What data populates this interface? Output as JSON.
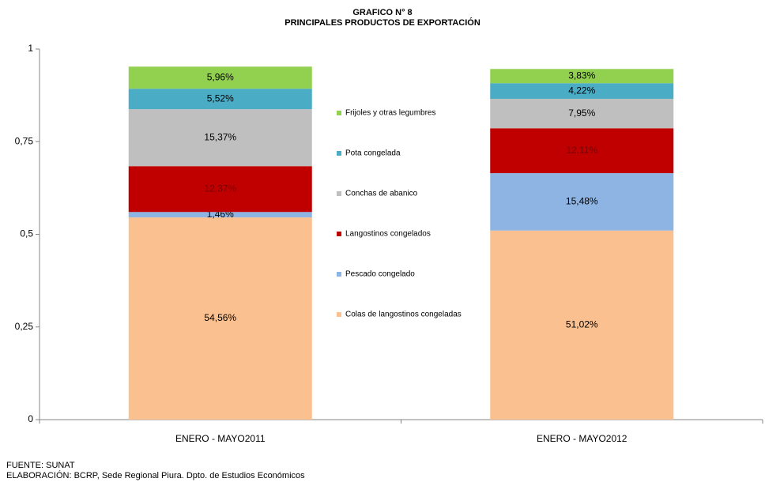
{
  "chart_data": {
    "type": "stacked_bar",
    "title": "GRAFICO N° 8",
    "subtitle": "PRINCIPALES PRODUCTOS  DE EXPORTACIÓN",
    "categories": [
      "ENERO - MAYO2011",
      "ENERO - MAYO2012"
    ],
    "series": [
      {
        "name": "Colas de langostinos congeladas",
        "color": "#fac090",
        "values": [
          0.5456,
          0.5102
        ],
        "value_labels": [
          "54,56%",
          "51,02%"
        ]
      },
      {
        "name": "Pescado congelado",
        "color": "#8db4e2",
        "values": [
          0.0146,
          0.1548
        ],
        "value_labels": [
          "1,46%",
          "15,48%"
        ]
      },
      {
        "name": "Langostinos congelados",
        "color": "#c00000",
        "values": [
          0.1237,
          0.1211
        ],
        "value_labels": [
          "12,37%",
          "12,11%"
        ]
      },
      {
        "name": "Conchas de abanico",
        "color": "#bfbfbf",
        "values": [
          0.1537,
          0.0795
        ],
        "value_labels": [
          "15,37%",
          "7,95%"
        ]
      },
      {
        "name": "Pota congelada",
        "color": "#4bacc6",
        "values": [
          0.0552,
          0.0422
        ],
        "value_labels": [
          "5,52%",
          "4,22%"
        ]
      },
      {
        "name": "Frijoles y otras legumbres",
        "color": "#92d050",
        "values": [
          0.0596,
          0.0383
        ],
        "value_labels": [
          "5,96%",
          "3,83%"
        ]
      }
    ],
    "ylim": [
      0,
      1
    ],
    "yticks": [
      0,
      {
        "value": 0.25,
        "label": "0,25"
      },
      {
        "value": 0.5,
        "label": "0,5"
      },
      {
        "value": 0.75,
        "label": "0,75"
      },
      1
    ],
    "legend": "center",
    "source": "FUENTE: SUNAT",
    "credit": "ELABORACIÓN: BCRP, Sede Regional Piura. Dpto. de Estudios Económicos"
  }
}
